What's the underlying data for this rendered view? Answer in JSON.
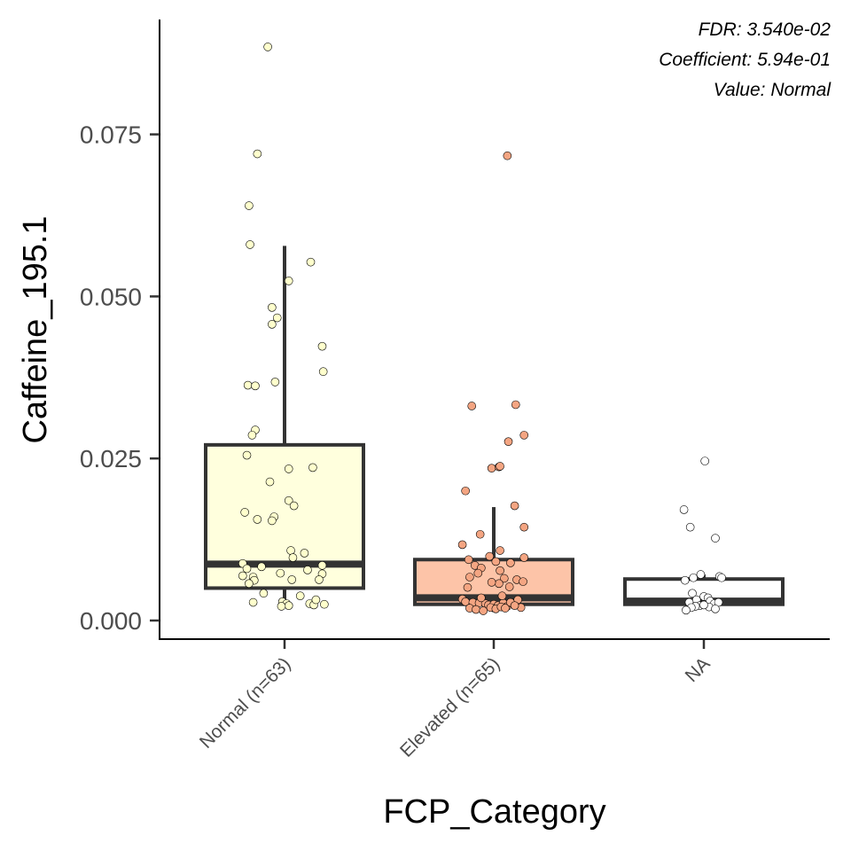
{
  "chart_data": {
    "type": "box",
    "xlabel": "FCP_Category",
    "ylabel": "Caffeine_195.1",
    "ylim": [
      -0.005,
      0.0925
    ],
    "yticks": [
      0.0,
      0.025,
      0.05,
      0.075
    ],
    "ytick_labels": [
      "0.000",
      "0.025",
      "0.050",
      "0.075"
    ],
    "annotations": [
      "FDR: 3.540e-02",
      "Coefficient: 5.94e-01",
      "Value: Normal"
    ],
    "grid": false,
    "legend": "none",
    "categories": [
      {
        "label": "Normal (n=63)",
        "fill": "#FFFFDD",
        "point_fill": "#FFFFCC",
        "box": {
          "q1": 0.005,
          "median": 0.0087,
          "q3": 0.0271,
          "whisker_low": 0.0025,
          "whisker_high": 0.0578
        },
        "points": [
          [
            -0.16,
            0.0885
          ],
          [
            -0.26,
            0.072
          ],
          [
            -0.34,
            0.064
          ],
          [
            -0.33,
            0.058
          ],
          [
            0.25,
            0.0553
          ],
          [
            0.04,
            0.0524
          ],
          [
            -0.12,
            0.0483
          ],
          [
            -0.07,
            0.0467
          ],
          [
            -0.12,
            0.0457
          ],
          [
            0.36,
            0.0423
          ],
          [
            0.37,
            0.0384
          ],
          [
            -0.09,
            0.0368
          ],
          [
            -0.35,
            0.0363
          ],
          [
            -0.28,
            0.0362
          ],
          [
            -0.28,
            0.0294
          ],
          [
            -0.31,
            0.0286
          ],
          [
            -0.36,
            0.0255
          ],
          [
            0.27,
            0.0236
          ],
          [
            0.04,
            0.0234
          ],
          [
            -0.14,
            0.0214
          ],
          [
            0.04,
            0.0185
          ],
          [
            0.09,
            0.0177
          ],
          [
            -0.38,
            0.0167
          ],
          [
            -0.1,
            0.016
          ],
          [
            -0.26,
            0.0156
          ],
          [
            -0.12,
            0.0154
          ],
          [
            0.06,
            0.0108
          ],
          [
            0.19,
            0.0104
          ],
          [
            0.08,
            0.0097
          ],
          [
            -0.4,
            0.0088
          ],
          [
            0.36,
            0.0085
          ],
          [
            -0.22,
            0.0083
          ],
          [
            -0.36,
            0.008
          ],
          [
            0.22,
            0.0078
          ],
          [
            -0.04,
            0.0073
          ],
          [
            0.36,
            0.0072
          ],
          [
            -0.4,
            0.0069
          ],
          [
            -0.3,
            0.0067
          ],
          [
            0.07,
            0.0063
          ],
          [
            -0.29,
            0.0062
          ],
          [
            -0.34,
            0.0057
          ],
          [
            0.33,
            0.0063
          ],
          [
            -0.2,
            0.0042
          ],
          [
            0.15,
            0.0038
          ],
          [
            -0.3,
            0.0028
          ],
          [
            -0.02,
            0.0029
          ],
          [
            0.02,
            0.0026
          ],
          [
            0.24,
            0.0026
          ],
          [
            0.28,
            0.0024
          ],
          [
            0.38,
            0.0025
          ],
          [
            0.04,
            0.0023
          ],
          [
            -0.03,
            0.0022
          ],
          [
            0.3,
            0.0032
          ]
        ]
      },
      {
        "label": "Elevated (n=65)",
        "fill": "#FDC4A8",
        "point_fill": "#F4A582",
        "box": {
          "q1": 0.0025,
          "median": 0.0035,
          "q3": 0.0094,
          "whisker_low": 0.0013,
          "whisker_high": 0.0175
        },
        "points": [
          [
            0.13,
            0.0717
          ],
          [
            0.21,
            0.0333
          ],
          [
            -0.21,
            0.0331
          ],
          [
            0.29,
            0.0286
          ],
          [
            0.14,
            0.0276
          ],
          [
            -0.02,
            0.0235
          ],
          [
            0.05,
            0.0237
          ],
          [
            0.06,
            0.0238
          ],
          [
            -0.27,
            0.02
          ],
          [
            0.2,
            0.0177
          ],
          [
            0.29,
            0.0144
          ],
          [
            -0.13,
            0.0133
          ],
          [
            -0.3,
            0.0117
          ],
          [
            0.06,
            0.0108
          ],
          [
            -0.24,
            0.0094
          ],
          [
            -0.04,
            0.0099
          ],
          [
            0.29,
            0.0097
          ],
          [
            0.02,
            0.0091
          ],
          [
            0.16,
            0.0089
          ],
          [
            -0.18,
            0.0085
          ],
          [
            -0.12,
            0.0081
          ],
          [
            0.06,
            0.0077
          ],
          [
            -0.15,
            0.0073
          ],
          [
            -0.23,
            0.0067
          ],
          [
            0.22,
            0.0063
          ],
          [
            0.1,
            0.0065
          ],
          [
            0.05,
            0.0057
          ],
          [
            -0.02,
            0.0059
          ],
          [
            0.28,
            0.006
          ],
          [
            -0.25,
            0.0051
          ],
          [
            0.15,
            0.0052
          ],
          [
            -0.3,
            0.0033
          ],
          [
            -0.27,
            0.0029
          ],
          [
            -0.2,
            0.0028
          ],
          [
            -0.14,
            0.0027
          ],
          [
            -0.08,
            0.0026
          ],
          [
            -0.05,
            0.0024
          ],
          [
            0.0,
            0.0025
          ],
          [
            0.04,
            0.0023
          ],
          [
            0.09,
            0.0027
          ],
          [
            0.13,
            0.0022
          ],
          [
            0.18,
            0.0026
          ],
          [
            0.23,
            0.0032
          ],
          [
            0.26,
            0.002
          ],
          [
            -0.23,
            0.0019
          ],
          [
            -0.17,
            0.0017
          ],
          [
            -0.1,
            0.0015
          ],
          [
            -0.03,
            0.002
          ],
          [
            0.02,
            0.0018
          ],
          [
            0.07,
            0.0021
          ],
          [
            0.11,
            0.0019
          ],
          [
            0.16,
            0.0028
          ],
          [
            0.2,
            0.0023
          ],
          [
            -0.12,
            0.0035
          ],
          [
            0.08,
            0.0038
          ]
        ]
      },
      {
        "label": "NA",
        "fill": "#FFFFFF",
        "point_fill": "#FFFFFF",
        "box": {
          "q1": 0.0025,
          "median": 0.003,
          "q3": 0.0064,
          "whisker_low": 0.0018,
          "whisker_high": 0.0071
        },
        "points": [
          [
            0.01,
            0.0246
          ],
          [
            -0.19,
            0.0171
          ],
          [
            -0.13,
            0.0144
          ],
          [
            0.11,
            0.0127
          ],
          [
            -0.1,
            0.0066
          ],
          [
            -0.03,
            0.0071
          ],
          [
            0.15,
            0.0068
          ],
          [
            0.17,
            0.0066
          ],
          [
            -0.18,
            0.0062
          ],
          [
            -0.11,
            0.0042
          ],
          [
            0.0,
            0.0037
          ],
          [
            0.04,
            0.0035
          ],
          [
            -0.07,
            0.0032
          ],
          [
            -0.14,
            0.0028
          ],
          [
            0.06,
            0.003
          ],
          [
            0.1,
            0.0026
          ],
          [
            0.14,
            0.0028
          ],
          [
            -0.04,
            0.0023
          ],
          [
            -0.08,
            0.0022
          ],
          [
            0.05,
            0.0021
          ],
          [
            -0.12,
            0.002
          ],
          [
            -0.17,
            0.0016
          ],
          [
            0.11,
            0.0018
          ],
          [
            0.0,
            0.0024
          ]
        ]
      }
    ]
  }
}
